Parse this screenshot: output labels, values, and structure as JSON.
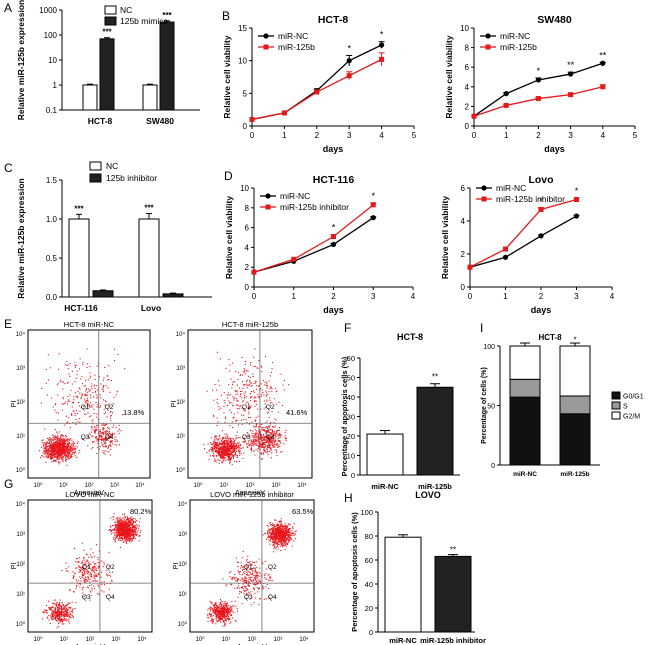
{
  "panels": {
    "A": {
      "letter": "A",
      "title": "",
      "ylabel": "Relative miR-125b expression",
      "yticks": [
        "0.1",
        "1",
        "10",
        "100",
        "1000"
      ],
      "legend": [
        "NC",
        "125b mimics"
      ],
      "stars": [
        "***",
        "***"
      ]
    },
    "B1": {
      "letter": "B",
      "title": "HCT-8",
      "xlabel": "days",
      "ylabel": "Relative cell viability",
      "legend": [
        "miR-NC",
        "miR-125b"
      ],
      "stars": [
        "*",
        "*"
      ]
    },
    "B2": {
      "letter": "",
      "title": "SW480",
      "xlabel": "days",
      "ylabel": "Relative cell viability",
      "legend": [
        "miR-NC",
        "miR-125b"
      ],
      "stars": [
        "*",
        "**",
        "**"
      ]
    },
    "C": {
      "letter": "C",
      "ylabel": "Relative miR-125b expression",
      "legend": [
        "NC",
        "125b inhibitor"
      ],
      "stars": [
        "***",
        "***"
      ]
    },
    "D1": {
      "letter": "D",
      "title": "HCT-116",
      "xlabel": "days",
      "ylabel": "Relative cell viability",
      "legend": [
        "miR-NC",
        "miR-125b inhibitor"
      ],
      "stars": [
        "*",
        "*"
      ]
    },
    "D2": {
      "letter": "",
      "title": "Lovo",
      "xlabel": "days",
      "ylabel": "Relative cell viability",
      "legend": [
        "miR-NC",
        "miR-125b inhibitor"
      ],
      "stars": [
        "*",
        "*"
      ]
    },
    "E": {
      "letter": "E",
      "plots": [
        {
          "title": "HCT-8 miR-NC",
          "q1": "Q1",
          "q2": "Q2",
          "q3": "Q3",
          "q4": "Q4",
          "pct": "13.8%"
        },
        {
          "title": "HCT-8 miR-125b",
          "q1": "Q1",
          "q2": "Q2",
          "q3": "Q3",
          "q4": "Q4",
          "pct": "41.6%"
        }
      ],
      "xlabel": "AnnexinV",
      "ylabel": "PI"
    },
    "F": {
      "letter": "F",
      "title": "HCT-8",
      "ylabel": "Percentage of apoptosis cells (%)",
      "stars": "**"
    },
    "I": {
      "letter": "I",
      "title": "HCT-8",
      "ylabel": "Percentage of cells (%)",
      "legend": [
        "G0/G1",
        "S",
        "G2/M"
      ],
      "stars": "*"
    },
    "G": {
      "letter": "G",
      "plots": [
        {
          "title": "LOVO  miR-NC",
          "q1": "Q1",
          "q2": "Q2",
          "q3": "Q3",
          "q4": "Q4",
          "pct": "80.2%"
        },
        {
          "title": "LOVO  miR-125b inhibitor",
          "q1": "Q1",
          "q2": "Q2",
          "q3": "Q3",
          "q4": "Q4",
          "pct": "63.5%"
        }
      ],
      "xlabel": "AnnexinV",
      "ylabel": "PI"
    },
    "H": {
      "letter": "H",
      "title": "LOVO",
      "ylabel": "Percentage of apoptosis cells (%)",
      "stars": "**"
    }
  },
  "flow_tick_labels": [
    "10⁰",
    "10¹",
    "10²",
    "10³",
    "10⁴"
  ],
  "colors": {
    "nc": "#000000",
    "treat": "#e31a1c",
    "scatter": "#e8141c",
    "grid": "#000000"
  },
  "chart_data": [
    {
      "id": "A",
      "type": "bar",
      "yscale": "log",
      "ylim": [
        0.1,
        1000
      ],
      "categories": [
        "HCT-8",
        "SW480"
      ],
      "series": [
        {
          "name": "NC",
          "values": [
            1,
            1
          ],
          "errors": [
            0.08,
            0.08
          ]
        },
        {
          "name": "125b mimics",
          "values": [
            70,
            330
          ],
          "errors": [
            8,
            40
          ]
        }
      ],
      "ylabel": "Relative miR-125b expression"
    },
    {
      "id": "B1",
      "type": "line",
      "title": "HCT-8",
      "x": [
        0,
        1,
        2,
        3,
        4
      ],
      "xlim": [
        0,
        5
      ],
      "ylim": [
        0,
        15
      ],
      "xticks": [
        0,
        1,
        2,
        3,
        4,
        5
      ],
      "yticks": [
        0,
        5,
        10,
        15
      ],
      "series": [
        {
          "name": "miR-NC",
          "values": [
            1,
            2,
            5.4,
            10,
            12.4
          ],
          "errors": [
            0,
            0,
            0.3,
            0.8,
            0.5
          ]
        },
        {
          "name": "miR-125b",
          "values": [
            1,
            2,
            5.2,
            7.7,
            10.2
          ],
          "errors": [
            0,
            0,
            0.3,
            0.6,
            1.0
          ]
        }
      ],
      "xlabel": "days",
      "ylabel": "Relative cell viability"
    },
    {
      "id": "B2",
      "type": "line",
      "title": "SW480",
      "x": [
        0,
        1,
        2,
        3,
        4
      ],
      "xlim": [
        0,
        5
      ],
      "ylim": [
        0,
        10
      ],
      "xticks": [
        0,
        1,
        2,
        3,
        4,
        5
      ],
      "yticks": [
        0,
        2,
        4,
        6,
        8,
        10
      ],
      "series": [
        {
          "name": "miR-NC",
          "values": [
            1,
            3.3,
            4.7,
            5.3,
            6.4
          ],
          "errors": [
            0,
            0.1,
            0.2,
            0.2,
            0.1
          ]
        },
        {
          "name": "miR-125b",
          "values": [
            1,
            2.1,
            2.8,
            3.2,
            4
          ],
          "errors": [
            0,
            0.1,
            0.1,
            0.1,
            0.2
          ]
        }
      ],
      "xlabel": "days",
      "ylabel": "Relative cell viability"
    },
    {
      "id": "C",
      "type": "bar",
      "ylim": [
        0,
        1.5
      ],
      "yticks": [
        0,
        0.5,
        1,
        1.5
      ],
      "categories": [
        "HCT-116",
        "Lovo"
      ],
      "series": [
        {
          "name": "NC",
          "values": [
            1,
            1
          ],
          "errors": [
            0.06,
            0.07
          ]
        },
        {
          "name": "125b inhibitor",
          "values": [
            0.08,
            0.04
          ],
          "errors": [
            0.01,
            0.01
          ]
        }
      ],
      "ylabel": "Relative miR-125b expression"
    },
    {
      "id": "D1",
      "type": "line",
      "title": "HCT-116",
      "x": [
        0,
        1,
        2,
        3
      ],
      "xlim": [
        0,
        4
      ],
      "ylim": [
        0,
        10
      ],
      "xticks": [
        0,
        1,
        2,
        3,
        4
      ],
      "yticks": [
        0,
        2,
        4,
        6,
        8,
        10
      ],
      "series": [
        {
          "name": "miR-NC",
          "values": [
            1.5,
            2.6,
            4.3,
            7
          ],
          "errors": [
            0,
            0,
            0.1,
            0.1
          ]
        },
        {
          "name": "miR-125b inhibitor",
          "values": [
            1.5,
            2.8,
            5.1,
            8.3
          ],
          "errors": [
            0,
            0,
            0.2,
            0.2
          ]
        }
      ],
      "xlabel": "days",
      "ylabel": "Relative cell viability"
    },
    {
      "id": "D2",
      "type": "line",
      "title": "Lovo",
      "x": [
        0,
        1,
        2,
        3
      ],
      "xlim": [
        0,
        4
      ],
      "ylim": [
        0,
        6
      ],
      "xticks": [
        0,
        1,
        2,
        3,
        4
      ],
      "yticks": [
        0,
        2,
        4,
        6
      ],
      "series": [
        {
          "name": "miR-NC",
          "values": [
            1.2,
            1.8,
            3.1,
            4.3
          ],
          "errors": [
            0,
            0,
            0.05,
            0.05
          ]
        },
        {
          "name": "miR-125b inhibitor",
          "values": [
            1.2,
            2.3,
            4.7,
            5.3
          ],
          "errors": [
            0,
            0,
            0.1,
            0.1
          ]
        }
      ],
      "xlabel": "days",
      "ylabel": "Relative cell viability"
    },
    {
      "id": "F",
      "type": "bar",
      "title": "HCT-8",
      "ylim": [
        0,
        60
      ],
      "yticks": [
        0,
        10,
        20,
        30,
        40,
        50,
        60
      ],
      "categories": [
        "miR-NC",
        "miR-125b"
      ],
      "values": [
        21,
        45
      ],
      "errors": [
        1.8,
        1.8
      ],
      "ylabel": "Percentage of apoptosis cells (%)"
    },
    {
      "id": "I",
      "type": "bar",
      "stacked": true,
      "title": "HCT-8",
      "ylim": [
        0,
        100
      ],
      "yticks": [
        0,
        50,
        100
      ],
      "categories": [
        "miR-NC",
        "miR-125b"
      ],
      "series": [
        {
          "name": "G0/G1",
          "values": [
            57,
            43
          ]
        },
        {
          "name": "S",
          "values": [
            15,
            15
          ]
        },
        {
          "name": "G2/M",
          "values": [
            28,
            42
          ]
        }
      ],
      "ylabel": "Percentage of cells (%)"
    },
    {
      "id": "H",
      "type": "bar",
      "title": "LOVO",
      "ylim": [
        0,
        100
      ],
      "yticks": [
        0,
        20,
        40,
        60,
        80,
        100
      ],
      "categories": [
        "miR-NC",
        "miR-125b inhibitor"
      ],
      "values": [
        79,
        63
      ],
      "errors": [
        2,
        1.5
      ],
      "ylabel": "Percentage of apoptosis cells (%)"
    }
  ]
}
